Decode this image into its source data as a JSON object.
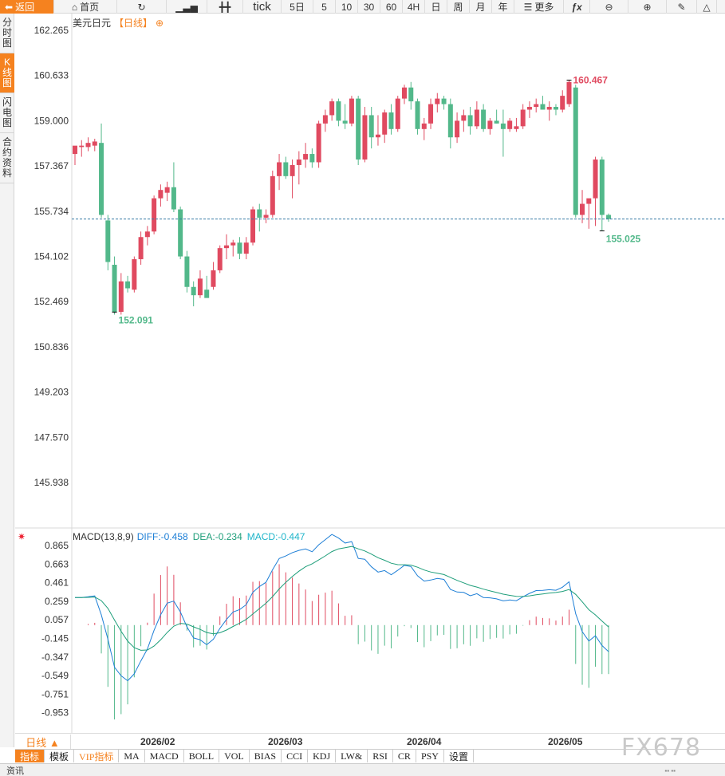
{
  "toolbar": {
    "back": "返回",
    "home": "首页",
    "tick": "tick",
    "five_day": "5日",
    "periods": [
      "5",
      "10",
      "30",
      "60",
      "4H",
      "日",
      "周",
      "月",
      "年"
    ],
    "more": "更多"
  },
  "side_tabs": [
    "分时图",
    "K线图",
    "闪电图",
    "合约资料"
  ],
  "header": {
    "symbol": "美元日元",
    "period": "【日线】",
    "plus_icon": "⊕"
  },
  "macd_header": {
    "title": "MACD(13,8,9)",
    "diff": "DIFF:-0.458",
    "dea": "DEA:-0.234",
    "macd": "MACD:-0.447"
  },
  "bottom": {
    "period_select": "日线 ▲",
    "dates": [
      "2026/02",
      "2026/03",
      "2026/04",
      "2026/05"
    ],
    "indicators": [
      "指标",
      "模板",
      "VIP指标",
      "MA",
      "MACD",
      "BOLL",
      "VOL",
      "BIAS",
      "CCI",
      "KDJ",
      "LW&",
      "RSI",
      "CR",
      "PSY",
      "设置"
    ],
    "status": "资讯"
  },
  "watermark": "FX678",
  "colors": {
    "up": "#e04a60",
    "down": "#52b88a",
    "accent": "#f5821f",
    "diff": "#1e7fd6",
    "dea": "#1e9e7a"
  },
  "chart_data": [
    {
      "type": "candlestick",
      "title": "美元日元",
      "y_ticks": [
        "162.265",
        "160.633",
        "159.000",
        "157.367",
        "155.734",
        "154.102",
        "152.469",
        "150.836",
        "149.203",
        "147.570",
        "145.938"
      ],
      "ylim": [
        145.938,
        162.265
      ],
      "annotations": {
        "high": "160.467",
        "low_left": "152.091",
        "low_right": "155.025"
      },
      "current_line": 155.45,
      "candles": [
        {
          "o": 157.8,
          "h": 158.0,
          "l": 157.4,
          "c": 158.1
        },
        {
          "o": 158.05,
          "h": 158.3,
          "l": 157.7,
          "c": 158.1
        },
        {
          "o": 158.05,
          "h": 158.4,
          "l": 157.9,
          "c": 158.2
        },
        {
          "o": 158.1,
          "h": 158.35,
          "l": 157.9,
          "c": 158.25
        },
        {
          "o": 158.2,
          "h": 158.9,
          "l": 155.5,
          "c": 155.6
        },
        {
          "o": 155.4,
          "h": 155.6,
          "l": 153.6,
          "c": 153.9
        },
        {
          "o": 153.8,
          "h": 154.1,
          "l": 152.0,
          "c": 152.1
        },
        {
          "o": 152.1,
          "h": 153.5,
          "l": 152.0,
          "c": 153.2
        },
        {
          "o": 153.2,
          "h": 153.4,
          "l": 152.8,
          "c": 152.95
        },
        {
          "o": 152.9,
          "h": 154.1,
          "l": 152.8,
          "c": 154.0
        },
        {
          "o": 154.0,
          "h": 155.0,
          "l": 153.8,
          "c": 154.8
        },
        {
          "o": 154.8,
          "h": 155.2,
          "l": 154.5,
          "c": 155.0
        },
        {
          "o": 155.0,
          "h": 156.3,
          "l": 154.9,
          "c": 156.2
        },
        {
          "o": 156.2,
          "h": 156.7,
          "l": 155.9,
          "c": 156.5
        },
        {
          "o": 156.4,
          "h": 156.8,
          "l": 156.1,
          "c": 156.6
        },
        {
          "o": 156.6,
          "h": 157.5,
          "l": 155.7,
          "c": 155.8
        },
        {
          "o": 155.8,
          "h": 155.9,
          "l": 154.0,
          "c": 154.1
        },
        {
          "o": 154.1,
          "h": 154.3,
          "l": 152.8,
          "c": 153.0
        },
        {
          "o": 153.0,
          "h": 153.2,
          "l": 152.3,
          "c": 152.7
        },
        {
          "o": 152.7,
          "h": 153.6,
          "l": 152.6,
          "c": 153.3
        },
        {
          "o": 152.9,
          "h": 153.4,
          "l": 152.7,
          "c": 152.6
        },
        {
          "o": 153.0,
          "h": 153.9,
          "l": 152.9,
          "c": 153.6
        },
        {
          "o": 153.6,
          "h": 154.5,
          "l": 153.5,
          "c": 154.4
        },
        {
          "o": 154.4,
          "h": 154.9,
          "l": 154.0,
          "c": 154.5
        },
        {
          "o": 154.5,
          "h": 154.7,
          "l": 154.1,
          "c": 154.6
        },
        {
          "o": 154.6,
          "h": 154.8,
          "l": 154.0,
          "c": 154.2
        },
        {
          "o": 154.2,
          "h": 154.8,
          "l": 154.0,
          "c": 154.6
        },
        {
          "o": 154.6,
          "h": 155.9,
          "l": 154.5,
          "c": 155.8
        },
        {
          "o": 155.8,
          "h": 156.0,
          "l": 155.0,
          "c": 155.5
        },
        {
          "o": 155.5,
          "h": 155.8,
          "l": 155.3,
          "c": 155.6
        },
        {
          "o": 155.6,
          "h": 157.2,
          "l": 155.5,
          "c": 157.0
        },
        {
          "o": 157.0,
          "h": 157.8,
          "l": 156.5,
          "c": 157.5
        },
        {
          "o": 157.5,
          "h": 157.7,
          "l": 156.9,
          "c": 157.0
        },
        {
          "o": 157.0,
          "h": 157.6,
          "l": 156.2,
          "c": 157.4
        },
        {
          "o": 157.4,
          "h": 157.9,
          "l": 156.7,
          "c": 157.6
        },
        {
          "o": 157.6,
          "h": 158.2,
          "l": 157.3,
          "c": 157.8
        },
        {
          "o": 157.8,
          "h": 158.0,
          "l": 157.3,
          "c": 157.5
        },
        {
          "o": 157.5,
          "h": 159.0,
          "l": 157.3,
          "c": 158.9
        },
        {
          "o": 158.9,
          "h": 159.4,
          "l": 158.6,
          "c": 159.2
        },
        {
          "o": 159.2,
          "h": 159.8,
          "l": 159.0,
          "c": 159.7
        },
        {
          "o": 159.7,
          "h": 159.8,
          "l": 158.8,
          "c": 159.0
        },
        {
          "o": 159.0,
          "h": 159.6,
          "l": 158.7,
          "c": 158.9
        },
        {
          "o": 158.9,
          "h": 159.9,
          "l": 158.8,
          "c": 159.8
        },
        {
          "o": 159.8,
          "h": 159.9,
          "l": 157.4,
          "c": 157.6
        },
        {
          "o": 157.6,
          "h": 159.5,
          "l": 157.5,
          "c": 159.2
        },
        {
          "o": 159.2,
          "h": 159.5,
          "l": 158.0,
          "c": 158.4
        },
        {
          "o": 158.4,
          "h": 159.2,
          "l": 158.1,
          "c": 158.5
        },
        {
          "o": 158.5,
          "h": 159.4,
          "l": 158.2,
          "c": 159.3
        },
        {
          "o": 159.3,
          "h": 159.6,
          "l": 158.5,
          "c": 158.7
        },
        {
          "o": 158.7,
          "h": 159.9,
          "l": 158.6,
          "c": 159.8
        },
        {
          "o": 159.8,
          "h": 160.3,
          "l": 159.6,
          "c": 160.2
        },
        {
          "o": 160.2,
          "h": 160.4,
          "l": 159.4,
          "c": 159.7
        },
        {
          "o": 159.7,
          "h": 159.8,
          "l": 158.5,
          "c": 158.7
        },
        {
          "o": 158.7,
          "h": 159.1,
          "l": 158.3,
          "c": 158.9
        },
        {
          "o": 158.9,
          "h": 159.8,
          "l": 158.7,
          "c": 159.6
        },
        {
          "o": 159.6,
          "h": 160.0,
          "l": 159.3,
          "c": 159.8
        },
        {
          "o": 159.8,
          "h": 159.9,
          "l": 159.4,
          "c": 159.6
        },
        {
          "o": 159.6,
          "h": 159.8,
          "l": 158.0,
          "c": 158.4
        },
        {
          "o": 158.4,
          "h": 159.3,
          "l": 158.2,
          "c": 159.0
        },
        {
          "o": 159.0,
          "h": 159.4,
          "l": 158.6,
          "c": 159.2
        },
        {
          "o": 159.2,
          "h": 159.5,
          "l": 158.5,
          "c": 158.8
        },
        {
          "o": 158.8,
          "h": 159.7,
          "l": 158.7,
          "c": 159.4
        },
        {
          "o": 159.4,
          "h": 159.6,
          "l": 158.6,
          "c": 158.7
        },
        {
          "o": 158.7,
          "h": 159.1,
          "l": 158.5,
          "c": 159.0
        },
        {
          "o": 159.0,
          "h": 159.4,
          "l": 158.9,
          "c": 158.9
        },
        {
          "o": 158.9,
          "h": 159.4,
          "l": 157.7,
          "c": 158.7
        },
        {
          "o": 158.7,
          "h": 159.1,
          "l": 158.6,
          "c": 159.0
        },
        {
          "o": 158.7,
          "h": 159.1,
          "l": 158.6,
          "c": 158.8
        },
        {
          "o": 158.8,
          "h": 159.6,
          "l": 158.7,
          "c": 159.4
        },
        {
          "o": 159.4,
          "h": 159.7,
          "l": 159.1,
          "c": 159.5
        },
        {
          "o": 159.5,
          "h": 159.8,
          "l": 159.3,
          "c": 159.6
        },
        {
          "o": 159.6,
          "h": 159.9,
          "l": 159.4,
          "c": 159.4
        },
        {
          "o": 159.4,
          "h": 159.7,
          "l": 159.0,
          "c": 159.5
        },
        {
          "o": 159.5,
          "h": 159.6,
          "l": 159.2,
          "c": 159.4
        },
        {
          "o": 159.4,
          "h": 160.1,
          "l": 159.3,
          "c": 159.9
        },
        {
          "o": 159.6,
          "h": 160.47,
          "l": 159.5,
          "c": 160.4
        },
        {
          "o": 160.2,
          "h": 160.3,
          "l": 155.5,
          "c": 155.6
        },
        {
          "o": 155.6,
          "h": 156.5,
          "l": 155.3,
          "c": 156.0
        },
        {
          "o": 156.0,
          "h": 156.1,
          "l": 155.1,
          "c": 156.2
        },
        {
          "o": 156.2,
          "h": 157.7,
          "l": 155.2,
          "c": 157.6
        },
        {
          "o": 157.6,
          "h": 157.7,
          "l": 155.03,
          "c": 155.6
        },
        {
          "o": 155.6,
          "h": 155.65,
          "l": 155.35,
          "c": 155.45
        }
      ]
    },
    {
      "type": "macd",
      "title": "MACD(13,8,9)",
      "y_ticks": [
        "0.865",
        "0.663",
        "0.461",
        "0.259",
        "0.057",
        "-0.145",
        "-0.347",
        "-0.549",
        "-0.751",
        "-0.953"
      ],
      "ylim": [
        -1.155,
        0.865
      ]
    }
  ]
}
